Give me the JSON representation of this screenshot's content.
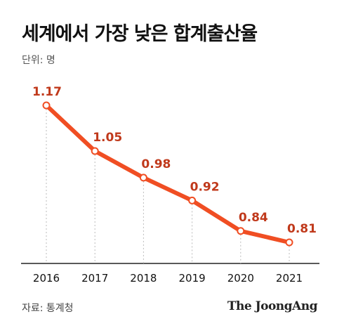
{
  "title": "세계에서 가장 낮은 합계출산율",
  "unit_label": "단위: 명",
  "source": "자료: 통계청",
  "publisher": "The JoongAng",
  "colors": {
    "line": "#f04e23",
    "label": "#c0391b",
    "marker_fill": "#ffffff",
    "grid": "#bbbbbb"
  },
  "chart_data": {
    "type": "line",
    "title": "세계에서 가장 낮은 합계출산율",
    "xlabel": "",
    "ylabel": "",
    "categories": [
      "2016",
      "2017",
      "2018",
      "2019",
      "2020",
      "2021"
    ],
    "series": [
      {
        "values": [
          1.17,
          1.05,
          0.98,
          0.92,
          0.84,
          0.81
        ]
      }
    ],
    "ylim": [
      0.6,
      1.2
    ],
    "grid": false
  }
}
